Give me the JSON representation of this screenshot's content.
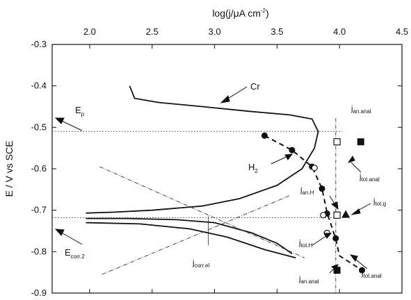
{
  "chart_data": {
    "type": "scatter",
    "xlabel_pre": "log(j/",
    "xlabel_mu": "μ",
    "xlabel_post": "A cm",
    "xlabel_sup": "-2",
    "xlabel_close": ")",
    "ylabel": "E / V vs SCE",
    "xlim": [
      1.7,
      4.5
    ],
    "ylim": [
      -0.9,
      -0.3
    ],
    "x_ticks": [
      "2.0",
      "2.5",
      "3.0",
      "3.5",
      "4.0",
      "4.5"
    ],
    "x_tick_values": [
      2.0,
      2.5,
      3.0,
      3.5,
      4.0,
      4.5
    ],
    "y_ticks": [
      "-0.3",
      "-0.4",
      "-0.5",
      "-0.6",
      "-0.7",
      "-0.8",
      "-0.9"
    ],
    "y_tick_values": [
      -0.3,
      -0.4,
      -0.5,
      -0.6,
      -0.7,
      -0.8,
      -0.9
    ],
    "reference_lines": {
      "E_p": -0.51,
      "E_corr2": -0.718,
      "j_corr_el": 2.95,
      "j_vertical": 3.97
    },
    "curves": {
      "cr_upper": [
        [
          2.32,
          -0.4
        ],
        [
          2.36,
          -0.43
        ],
        [
          2.55,
          -0.44
        ],
        [
          2.9,
          -0.45
        ],
        [
          3.3,
          -0.462
        ],
        [
          3.6,
          -0.47
        ],
        [
          3.78,
          -0.48
        ],
        [
          3.83,
          -0.51
        ],
        [
          3.8,
          -0.55
        ],
        [
          3.7,
          -0.6
        ],
        [
          3.5,
          -0.64
        ],
        [
          3.2,
          -0.672
        ],
        [
          2.9,
          -0.69
        ],
        [
          2.5,
          -0.7
        ],
        [
          2.18,
          -0.705
        ],
        [
          1.97,
          -0.707
        ]
      ],
      "lower_branch_a": [
        [
          1.97,
          -0.72
        ],
        [
          2.3,
          -0.72
        ],
        [
          2.7,
          -0.723
        ],
        [
          3.0,
          -0.73
        ],
        [
          3.3,
          -0.755
        ],
        [
          3.5,
          -0.78
        ],
        [
          3.62,
          -0.805
        ]
      ],
      "lower_branch_b": [
        [
          1.97,
          -0.73
        ],
        [
          2.4,
          -0.733
        ],
        [
          2.8,
          -0.745
        ],
        [
          3.1,
          -0.765
        ],
        [
          3.4,
          -0.795
        ],
        [
          3.65,
          -0.815
        ]
      ],
      "dashdot_a": [
        [
          2.08,
          -0.595
        ],
        [
          3.72,
          -0.815
        ]
      ],
      "dashdot_b": [
        [
          2.1,
          -0.855
        ],
        [
          3.6,
          -0.665
        ]
      ],
      "h2_dashed": [
        [
          3.4,
          -0.52
        ],
        [
          3.62,
          -0.555
        ],
        [
          3.78,
          -0.595
        ],
        [
          3.86,
          -0.648
        ],
        [
          3.9,
          -0.705
        ],
        [
          3.97,
          -0.77
        ],
        [
          4.0,
          -0.81
        ],
        [
          4.18,
          -0.845
        ]
      ]
    },
    "points": {
      "filled_circles": [
        [
          3.4,
          -0.52
        ],
        [
          3.62,
          -0.555
        ],
        [
          3.78,
          -0.595
        ],
        [
          3.86,
          -0.648
        ],
        [
          3.9,
          -0.708
        ],
        [
          3.97,
          -0.768
        ],
        [
          4.18,
          -0.845
        ]
      ],
      "open_circles": [
        [
          3.8,
          -0.598
        ],
        [
          3.87,
          -0.712
        ],
        [
          3.9,
          -0.755
        ]
      ],
      "open_squares": [
        [
          3.98,
          -0.535
        ],
        [
          3.98,
          -0.712
        ]
      ],
      "filled_squares": [
        [
          4.17,
          -0.535
        ],
        [
          3.98,
          -0.845
        ]
      ],
      "triangle": [
        [
          4.05,
          -0.71
        ]
      ]
    },
    "grid": false
  },
  "annotations": {
    "cr": "Cr",
    "ep_main": "E",
    "ep_sub": "p",
    "h2_main": "H",
    "h2_sub": "2",
    "ecorr_main": "E",
    "ecorr_sub": "corr.2",
    "jcorr_main": "j",
    "jcorr_sub": "corr.el",
    "jan_anal_top_main": "j",
    "jan_anal_top_sub": "an.anal",
    "jtot_anal_main": "j",
    "jtot_anal_sub": "tot.anal",
    "jtot_g_main": "j",
    "jtot_g_sub": "tot.g",
    "jan_h_main": "j",
    "jan_h_sub": "an.H",
    "jtot_h_main": "j",
    "jtot_h_sub": "tot.H",
    "jan_anal_bot_main": "j",
    "jan_anal_bot_sub": "an.anal",
    "jtot_anal_bot_main": "j",
    "jtot_anal_bot_sub": "tot.anal"
  }
}
